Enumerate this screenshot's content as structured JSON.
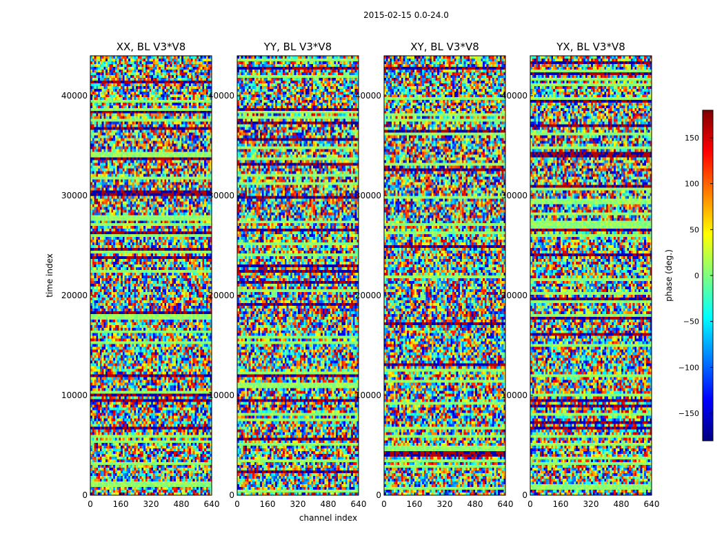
{
  "chart_data": {
    "type": "heatmap",
    "suptitle": "2015-02-15 0.0-24.0",
    "xlabel": "channel index",
    "ylabel": "time index",
    "xlim": [
      0,
      640
    ],
    "ylim": [
      0,
      44000
    ],
    "x_ticks": [
      0,
      160,
      320,
      480,
      640
    ],
    "y_ticks": [
      0,
      10000,
      20000,
      30000,
      40000
    ],
    "colorbar": {
      "label": "phase (deg.)",
      "range": [
        -180,
        180
      ],
      "ticks": [
        150,
        100,
        50,
        0,
        -50,
        -100,
        -150
      ],
      "tick_labels": [
        "150",
        "100",
        "50",
        "0",
        "−50",
        "−100",
        "−150"
      ],
      "colormap": [
        "#00007f",
        "#0000ff",
        "#007fff",
        "#00ffff",
        "#7fff7f",
        "#ffff00",
        "#ff7f00",
        "#ff0000",
        "#7f0000"
      ]
    },
    "panels": [
      {
        "title": "XX, BL V3*V8"
      },
      {
        "title": "YY, BL V3*V8"
      },
      {
        "title": "XY, BL V3*V8"
      },
      {
        "title": "YX, BL V3*V8"
      }
    ]
  }
}
